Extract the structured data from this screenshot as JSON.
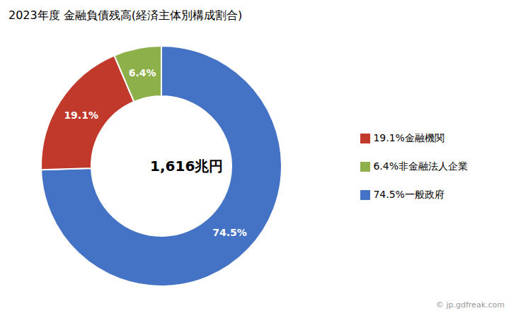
{
  "chart_data": {
    "type": "pie",
    "title": "2023年度 金融負債残高(経済主体別構成割合)",
    "categories": [
      "74.5%一般政府",
      "19.1%金融機関",
      "6.4%非金融法人企業"
    ],
    "values": [
      74.5,
      19.1,
      6.4
    ],
    "value_labels": [
      "74.5%",
      "19.1%",
      "6.4%"
    ],
    "colors": [
      "#4472C4",
      "#C0392B",
      "#8DB04A"
    ],
    "data_labels": true,
    "legend": "right",
    "annotations": [
      "1,616兆円",
      "© jp.gdfreak.com"
    ]
  }
}
